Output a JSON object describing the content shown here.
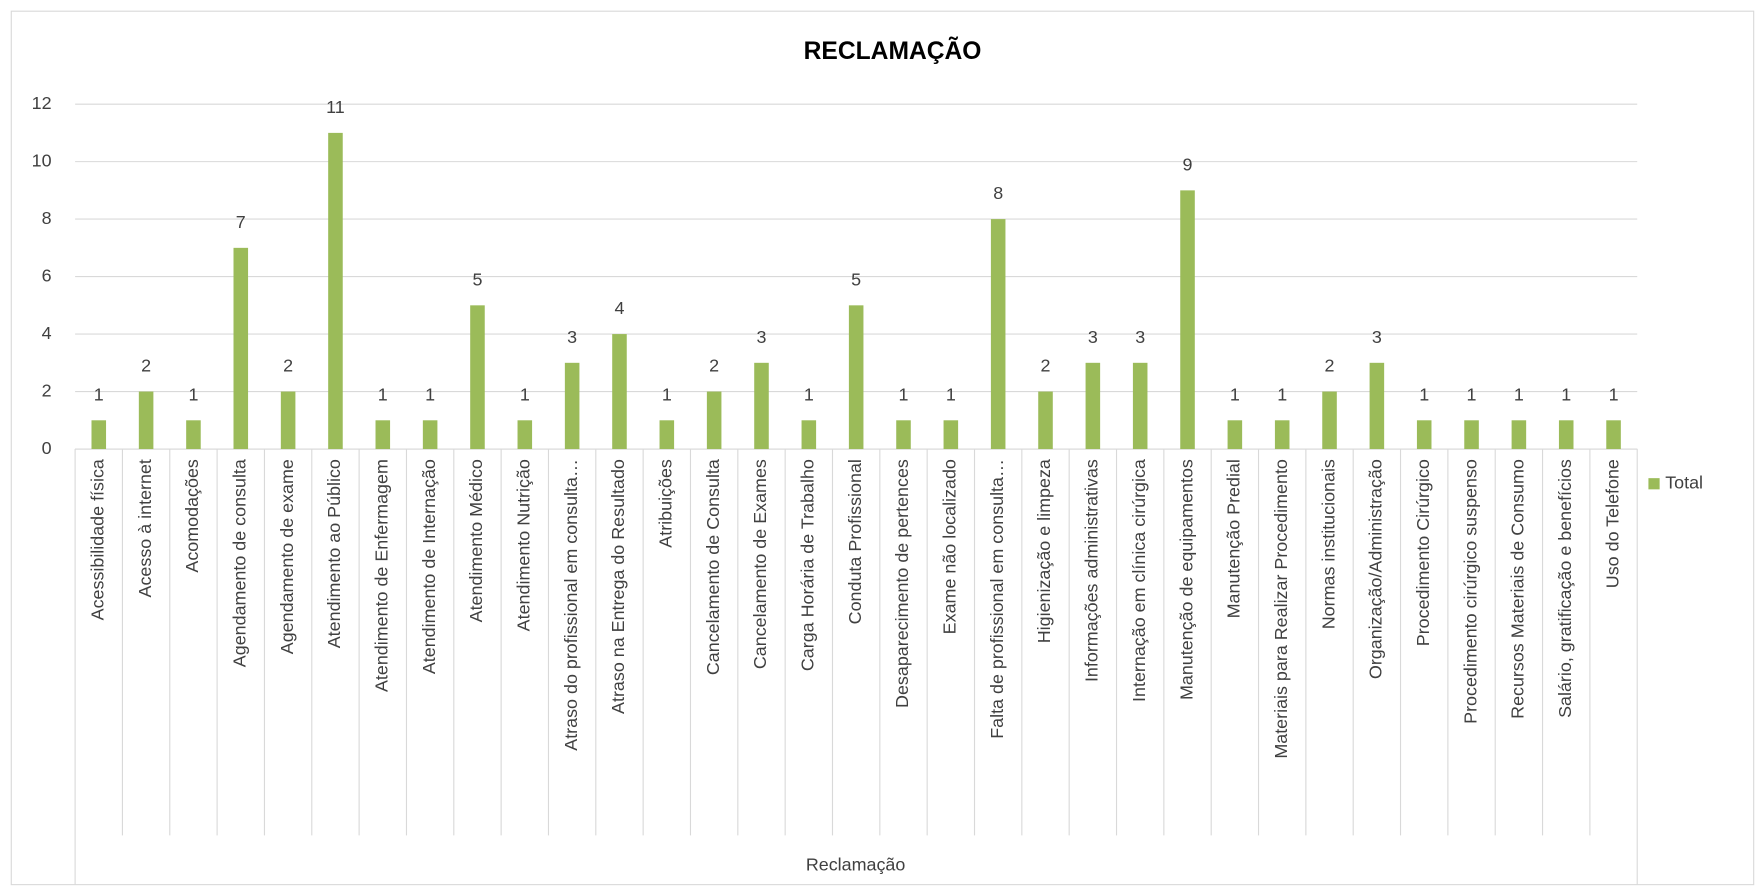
{
  "chart_data": {
    "type": "bar",
    "title": "RECLAMAÇÃO",
    "x_label": "Reclamação",
    "categories": [
      "Acessibilidade física",
      "Acesso à internet",
      "Acomodações",
      "Agendamento de consulta",
      "Agendamento de exame",
      "Atendimento ao Público",
      "Atendimento de Enfermagem",
      "Atendimento de Internação",
      "Atendimento Médico",
      "Atendimento Nutrição",
      "Atraso do profissional em consulta…",
      "Atraso na Entrega do Resultado",
      "Atribuições",
      "Cancelamento de Consulta",
      "Cancelamento de Exames",
      "Carga Horária de Trabalho",
      "Conduta Profissional",
      "Desaparecimento de pertences",
      "Exame não localizado",
      "Falta de profissional em consulta…",
      "Higienização e limpeza",
      "Informações administrativas",
      "Internação em clínica cirúrgica",
      "Manutenção de equipamentos",
      "Manutenção Predial",
      "Materiais para Realizar Procedimento",
      "Normas institucionais",
      "Organização/Administração",
      "Procedimento Cirúrgico",
      "Procedimento cirúrgico suspenso",
      "Recursos Materiais de Consumo",
      "Salário, gratificação e benefícios",
      "Uso do Telefone"
    ],
    "series": [
      {
        "name": "Total",
        "color": "#9bbb59",
        "values": [
          1,
          2,
          1,
          7,
          2,
          11,
          1,
          1,
          5,
          1,
          3,
          4,
          1,
          2,
          3,
          1,
          5,
          1,
          1,
          8,
          2,
          3,
          3,
          9,
          1,
          1,
          2,
          3,
          1,
          1,
          1,
          1,
          1
        ]
      }
    ],
    "ylim": [
      0,
      12
    ],
    "yticks": [
      0,
      2,
      4,
      6,
      8,
      10,
      12
    ],
    "grid": true,
    "legend": "right"
  }
}
